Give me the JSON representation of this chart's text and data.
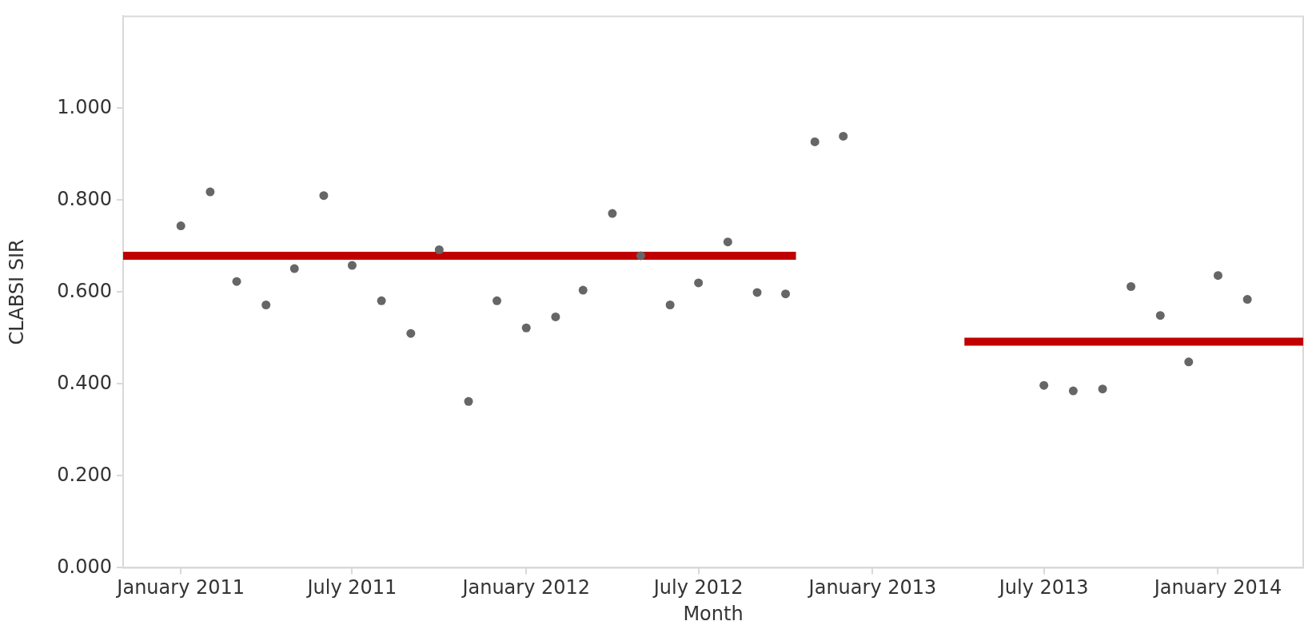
{
  "chart_data": {
    "type": "scatter",
    "xlabel": "Month",
    "ylabel": "CLABSI SIR",
    "xlim": [
      "2010-11",
      "2014-04"
    ],
    "xticks": [
      {
        "value": "2011-01",
        "label": "January 2011"
      },
      {
        "value": "2011-07",
        "label": "July 2011"
      },
      {
        "value": "2012-01",
        "label": "January 2012"
      },
      {
        "value": "2012-07",
        "label": "July 2012"
      },
      {
        "value": "2013-01",
        "label": "January 2013"
      },
      {
        "value": "2013-07",
        "label": "July 2013"
      },
      {
        "value": "2014-01",
        "label": "January 2014"
      }
    ],
    "ylim": [
      0,
      1.2
    ],
    "yticks": [
      {
        "value": 0,
        "label": "0.000"
      },
      {
        "value": 0.2,
        "label": "0.200"
      },
      {
        "value": 0.4,
        "label": "0.400"
      },
      {
        "value": 0.6,
        "label": "0.600"
      },
      {
        "value": 0.8,
        "label": "0.800"
      },
      {
        "value": 1,
        "label": "1.000"
      }
    ],
    "grid": false,
    "legend": false,
    "marker": "circle",
    "series": [
      {
        "color": "#666666",
        "x": [
          "2011-01",
          "2011-02",
          "2011-03",
          "2011-04",
          "2011-05",
          "2011-06",
          "2011-07",
          "2011-08",
          "2011-09",
          "2011-10",
          "2011-11",
          "2011-12",
          "2012-01",
          "2012-02",
          "2012-03",
          "2012-04",
          "2012-05",
          "2012-06",
          "2012-07",
          "2012-08",
          "2012-09",
          "2012-10",
          "2012-11",
          "2012-12",
          "2013-07",
          "2013-08",
          "2013-09",
          "2013-10",
          "2013-11",
          "2013-12",
          "2014-01",
          "2014-02"
        ],
        "values": [
          0.744,
          0.818,
          0.623,
          0.572,
          0.651,
          0.81,
          0.658,
          0.581,
          0.51,
          0.692,
          0.362,
          0.581,
          0.522,
          0.546,
          0.604,
          0.771,
          0.679,
          0.572,
          0.62,
          0.709,
          0.599,
          0.596,
          0.927,
          0.939,
          0.397,
          0.385,
          0.389,
          0.612,
          0.549,
          0.448,
          0.636,
          0.584
        ]
      },
      {
        "type": "line",
        "color": "#c00000",
        "marker": "none",
        "x": [
          "2010-11",
          "2012-10-12"
        ],
        "values": [
          0.679,
          0.679
        ]
      },
      {
        "type": "line",
        "color": "#c00000",
        "marker": "none",
        "x": [
          "2013-04-08",
          "2014-04"
        ],
        "values": [
          0.492,
          0.492
        ]
      }
    ]
  }
}
